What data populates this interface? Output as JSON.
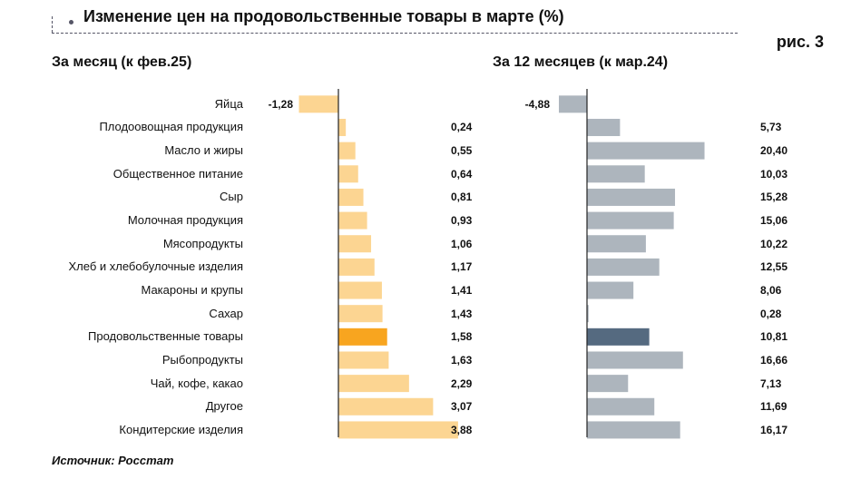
{
  "title": "Изменение цен на продовольственные товары в марте (%)",
  "figure_label": "рис. 3",
  "source": "Источник: Росстат",
  "colors": {
    "monthly": "#fcd592",
    "monthly_highlight": "#f8a51f",
    "yearly": "#adb5bd",
    "yearly_highlight": "#556a80",
    "axis": "#222222"
  },
  "chart_data": [
    {
      "type": "bar",
      "orientation": "horizontal",
      "title": "За месяц (к фев.25)",
      "categories": [
        "Яйца",
        "Плодоовощная продукция",
        "Масло и жиры",
        "Общественное питание",
        "Сыр",
        "Молочная продукция",
        "Мясопродукты",
        "Хлеб и хлебобулочные изделия",
        "Макароны и крупы",
        "Сахар",
        "Продовольственные товары",
        "Рыбопродукты",
        "Чай, кофе, какао",
        "Другое",
        "Кондитерские изделия"
      ],
      "values": [
        -1.28,
        0.24,
        0.55,
        0.64,
        0.81,
        0.93,
        1.06,
        1.17,
        1.41,
        1.43,
        1.58,
        1.63,
        2.29,
        3.07,
        3.88
      ],
      "labels": [
        "-1,28",
        "0,24",
        "0,55",
        "0,64",
        "0,81",
        "0,93",
        "1,06",
        "1,17",
        "1,41",
        "1,43",
        "1,58",
        "1,63",
        "2,29",
        "3,07",
        "3,88"
      ],
      "highlight_index": 10
    },
    {
      "type": "bar",
      "orientation": "horizontal",
      "title": "За 12 месяцев (к мар.24)",
      "categories": [
        "Яйца",
        "Плодоовощная продукция",
        "Масло и жиры",
        "Общественное питание",
        "Сыр",
        "Молочная продукция",
        "Мясопродукты",
        "Хлеб и хлебобулочные изделия",
        "Макароны и крупы",
        "Сахар",
        "Продовольственные товары",
        "Рыбопродукты",
        "Чай, кофе, какао",
        "Другое",
        "Кондитерские изделия"
      ],
      "values": [
        -4.88,
        5.73,
        20.4,
        10.03,
        15.28,
        15.06,
        10.22,
        12.55,
        8.06,
        0.28,
        10.81,
        16.66,
        7.13,
        11.69,
        16.17
      ],
      "labels": [
        "-4,88",
        "5,73",
        "20,40",
        "10,03",
        "15,28",
        "15,06",
        "10,22",
        "12,55",
        "8,06",
        "0,28",
        "10,81",
        "16,66",
        "7,13",
        "11,69",
        "16,17"
      ],
      "highlight_index": 10
    }
  ]
}
